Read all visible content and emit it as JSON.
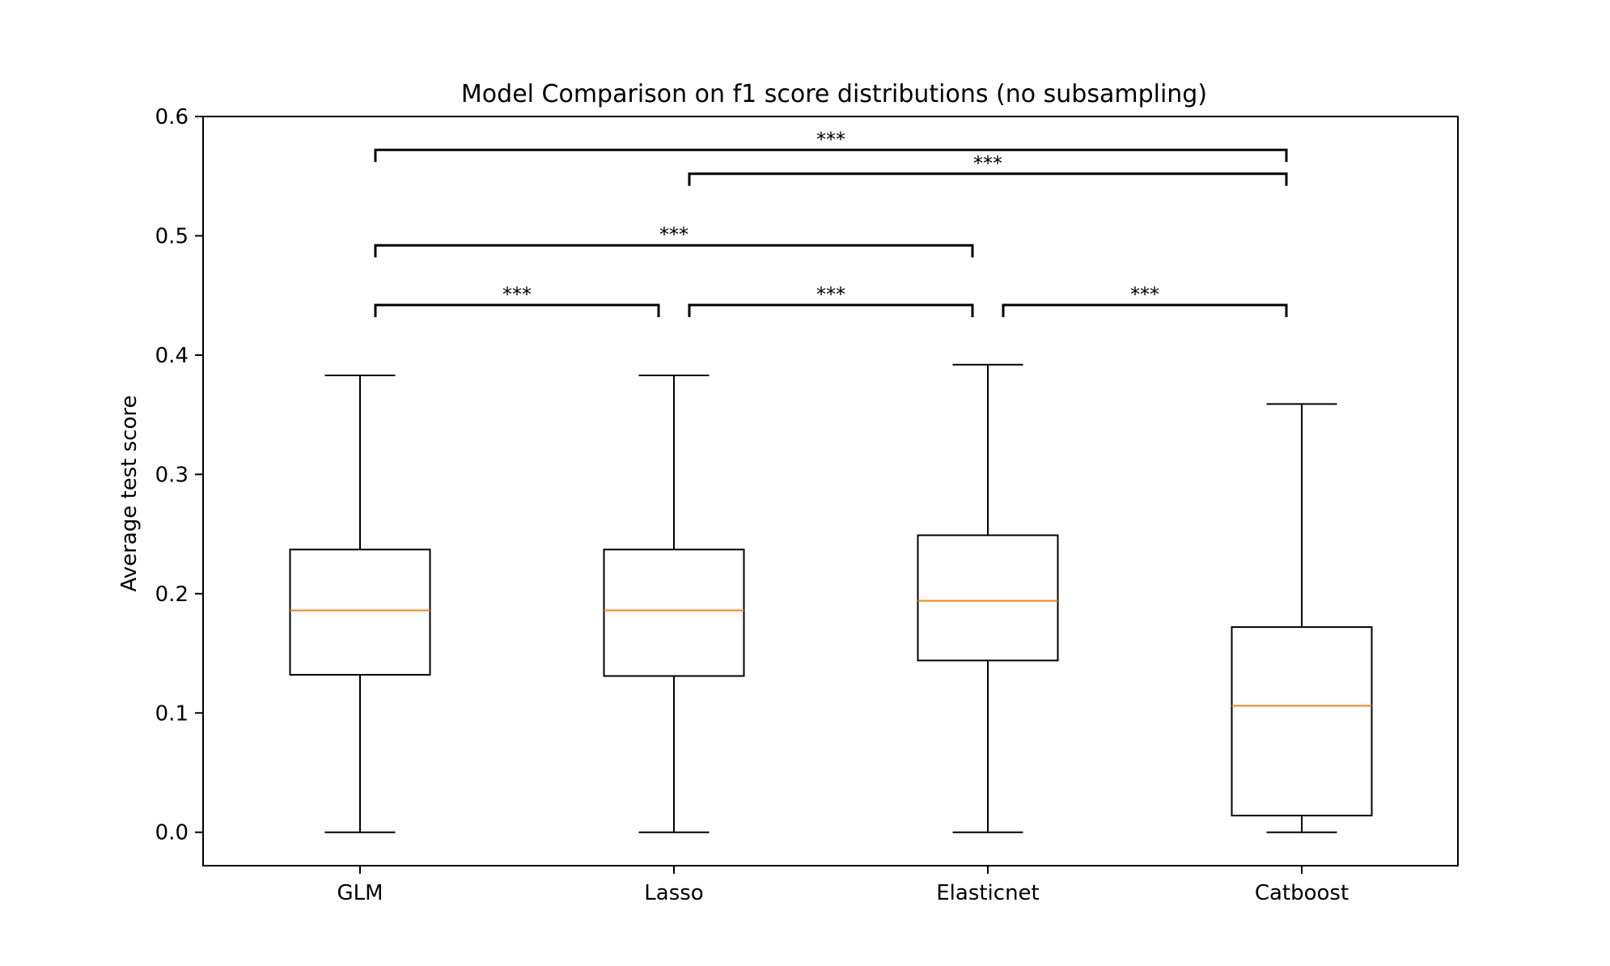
{
  "chart_data": {
    "type": "boxplot",
    "title": "Model Comparison on f1 score distributions (no subsampling)",
    "xlabel": "",
    "ylabel": "Average test score",
    "ylim": [
      -0.028,
      0.6
    ],
    "yticks": [
      0.0,
      0.1,
      0.2,
      0.3,
      0.4,
      0.5,
      0.6
    ],
    "ytick_labels": [
      "0.0",
      "0.1",
      "0.2",
      "0.3",
      "0.4",
      "0.5",
      "0.6"
    ],
    "grid": false,
    "categories": [
      "GLM",
      "Lasso",
      "Elasticnet",
      "Catboost"
    ],
    "boxes": [
      {
        "label": "GLM",
        "whisker_low": 0.0,
        "q1": 0.132,
        "median": 0.186,
        "q3": 0.237,
        "whisker_high": 0.383
      },
      {
        "label": "Lasso",
        "whisker_low": 0.0,
        "q1": 0.131,
        "median": 0.186,
        "q3": 0.237,
        "whisker_high": 0.383
      },
      {
        "label": "Elasticnet",
        "whisker_low": 0.0,
        "q1": 0.144,
        "median": 0.194,
        "q3": 0.249,
        "whisker_high": 0.392
      },
      {
        "label": "Catboost",
        "whisker_low": 0.0,
        "q1": 0.014,
        "median": 0.106,
        "q3": 0.172,
        "whisker_high": 0.359
      }
    ],
    "significance": [
      {
        "from": 0,
        "to": 1,
        "label": "***",
        "y": 0.442
      },
      {
        "from": 1,
        "to": 2,
        "label": "***",
        "y": 0.442
      },
      {
        "from": 2,
        "to": 3,
        "label": "***",
        "y": 0.442
      },
      {
        "from": 0,
        "to": 2,
        "label": "***",
        "y": 0.492
      },
      {
        "from": 1,
        "to": 3,
        "label": "***",
        "y": 0.552
      },
      {
        "from": 0,
        "to": 3,
        "label": "***",
        "y": 0.572
      }
    ],
    "colors": {
      "box": "#000000",
      "median": "#ff7f0e",
      "bracket": "#000000"
    }
  }
}
